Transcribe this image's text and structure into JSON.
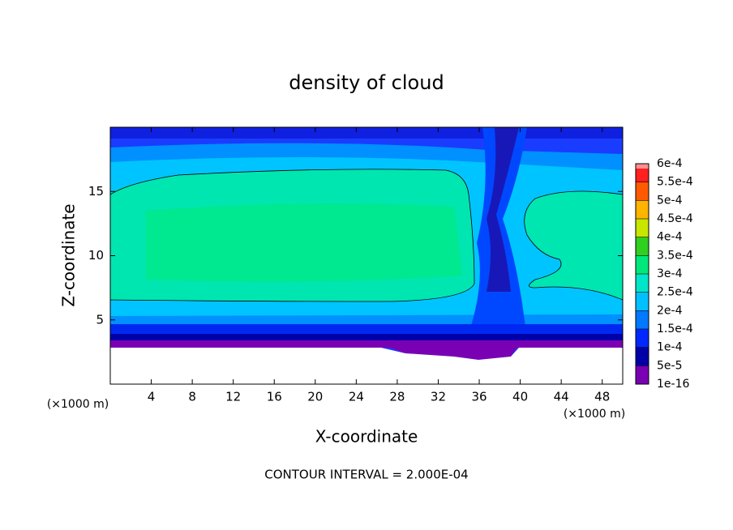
{
  "chart_data": {
    "type": "contour",
    "title": "density of cloud",
    "x_label": "X-coordinate",
    "y_label": "Z-coordinate",
    "x_unit": "(×1000 m)",
    "y_unit": "(×1000 m)",
    "annotation": "CONTOUR INTERVAL = 2.000E-04",
    "xlim": [
      0,
      50
    ],
    "xticks": [
      4,
      8,
      12,
      16,
      20,
      24,
      28,
      32,
      36,
      40,
      44,
      48
    ],
    "ylim": [
      0,
      20
    ],
    "yticks": [
      5,
      10,
      15
    ],
    "colorbar": {
      "ticks": [
        {
          "value": 1e-16,
          "label": "1e-16"
        },
        {
          "value": 5e-05,
          "label": "5e-5"
        },
        {
          "value": 0.0001,
          "label": "1e-4"
        },
        {
          "value": 0.00015,
          "label": "1.5e-4"
        },
        {
          "value": 0.0002,
          "label": "2e-4"
        },
        {
          "value": 0.00025,
          "label": "2.5e-4"
        },
        {
          "value": 0.0003,
          "label": "3e-4"
        },
        {
          "value": 0.00035,
          "label": "3.5e-4"
        },
        {
          "value": 0.0004,
          "label": "4e-4"
        },
        {
          "value": 0.00045,
          "label": "4.5e-4"
        },
        {
          "value": 0.0005,
          "label": "5e-4"
        },
        {
          "value": 0.00055,
          "label": "5.5e-4"
        },
        {
          "value": 0.0006,
          "label": "6e-4"
        }
      ],
      "colors": [
        "#7a00b4",
        "#0000a8",
        "#0028ff",
        "#0078ff",
        "#00c0ff",
        "#00e6c8",
        "#00e87a",
        "#30d020",
        "#c8e600",
        "#ffb400",
        "#ff5a00",
        "#ff2020"
      ],
      "top_color": "#ff9090"
    }
  }
}
